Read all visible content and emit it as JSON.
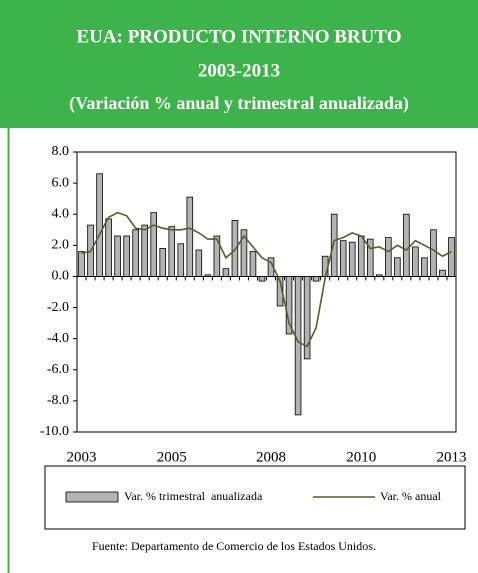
{
  "chart_data": {
    "type": "bar-line",
    "title": "EUA: PRODUCTO INTERNO BRUTO",
    "subtitle": "2003-2013",
    "subtitle2": "(Variación % anual y trimestral anualizada)",
    "categories": [
      "2003",
      null,
      null,
      null,
      null,
      null,
      null,
      null,
      null,
      null,
      "2005",
      null,
      null,
      null,
      null,
      null,
      null,
      null,
      null,
      null,
      null,
      "2008",
      null,
      null,
      null,
      null,
      null,
      null,
      null,
      null,
      null,
      "2010",
      null,
      null,
      null,
      null,
      null,
      null,
      null,
      null,
      null,
      "2013"
    ],
    "series": [
      {
        "name": "Var. % trimestral  anualizada",
        "color": "#b3b3b3",
        "kind": "bar",
        "values": [
          1.6,
          3.3,
          6.6,
          3.7,
          2.6,
          2.6,
          3.0,
          3.3,
          4.1,
          1.8,
          3.2,
          2.1,
          5.1,
          1.7,
          0.1,
          2.6,
          0.5,
          3.6,
          3.0,
          1.6,
          -0.3,
          1.2,
          -1.9,
          -3.7,
          -8.9,
          -5.3,
          -0.3,
          1.3,
          4.0,
          2.3,
          2.2,
          2.6,
          2.4,
          0.1,
          2.5,
          1.2,
          4.0,
          1.9,
          1.2,
          3.0,
          0.4,
          2.5
        ]
      },
      {
        "name": "Var. % anual",
        "color": "#4f6228",
        "kind": "line",
        "values": [
          1.5,
          1.6,
          2.7,
          3.8,
          4.1,
          3.9,
          3.1,
          3.0,
          3.3,
          3.1,
          3.0,
          3.0,
          3.1,
          2.8,
          2.4,
          2.4,
          1.2,
          1.7,
          2.6,
          1.9,
          1.2,
          0.9,
          -0.3,
          -3.0,
          -4.2,
          -4.5,
          -3.3,
          -0.1,
          2.3,
          2.5,
          2.8,
          2.6,
          1.8,
          1.9,
          1.6,
          2.0,
          1.7,
          2.3,
          2.0,
          1.7,
          1.3,
          1.6
        ]
      }
    ],
    "ylim": [
      -10,
      8
    ],
    "yticks": [
      {
        "value": -10,
        "label": "-10.0"
      },
      {
        "value": -8,
        "label": "-8.0"
      },
      {
        "value": -6,
        "label": "-6.0"
      },
      {
        "value": -4,
        "label": "-4.0"
      },
      {
        "value": -2,
        "label": "-2.0"
      },
      {
        "value": 0,
        "label": "0.0"
      },
      {
        "value": 2,
        "label": "2.0"
      },
      {
        "value": 4,
        "label": "4.0"
      },
      {
        "value": 6,
        "label": "6.0"
      },
      {
        "value": 8,
        "label": "8.0"
      }
    ],
    "source": "Fuente:  Departamento de Comercio de los Estados Unidos."
  }
}
